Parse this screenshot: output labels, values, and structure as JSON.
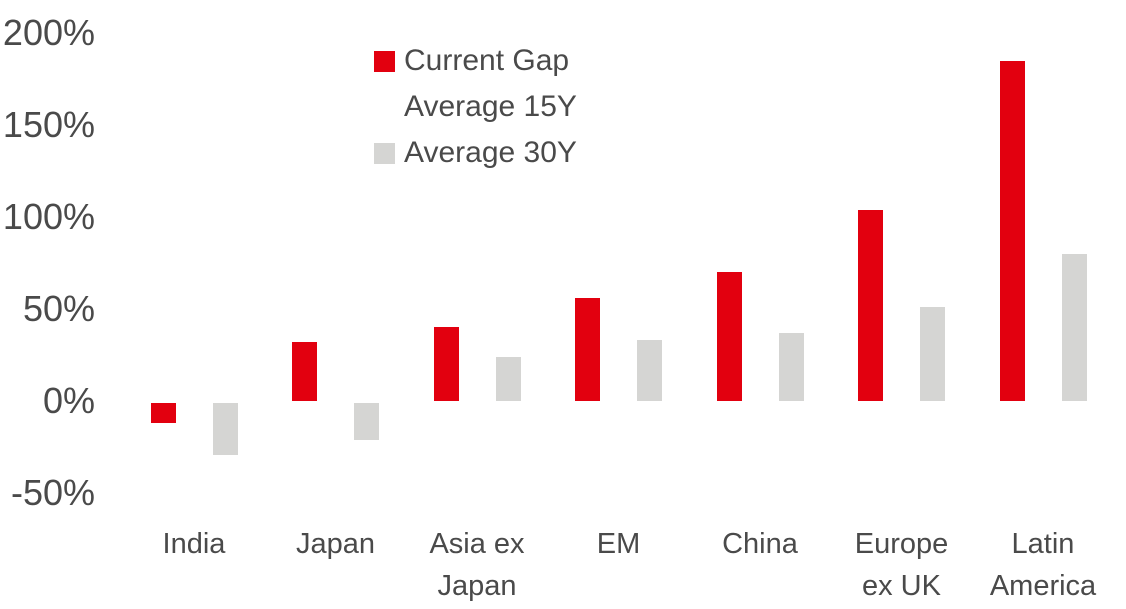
{
  "chart_data": {
    "type": "bar",
    "title": "",
    "categories": [
      "India",
      "Japan",
      "Asia ex Japan",
      "EM",
      "China",
      "Europe ex UK",
      "Latin America"
    ],
    "category_label_lines": [
      [
        "India"
      ],
      [
        "Japan"
      ],
      [
        "Asia ex",
        "Japan"
      ],
      [
        "EM"
      ],
      [
        "China"
      ],
      [
        "Europe",
        "ex UK"
      ],
      [
        "Latin",
        "America"
      ]
    ],
    "series": [
      {
        "name": "Current Gap Average 15Y",
        "key": "current-gap-average-15y",
        "color": "#e2000f",
        "values": [
          -11,
          32,
          40,
          56,
          70,
          104,
          185
        ]
      },
      {
        "name": "Average 30Y",
        "key": "average-30y",
        "color": "#d5d5d3",
        "values": [
          -28,
          -20,
          24,
          33,
          37,
          51,
          80
        ]
      }
    ],
    "unit": "%",
    "yticks": [
      {
        "value": 200,
        "label": "200%"
      },
      {
        "value": 150,
        "label": "150%"
      },
      {
        "value": 100,
        "label": "100%"
      },
      {
        "value": 50,
        "label": "50%"
      },
      {
        "value": 0,
        "label": "0%"
      },
      {
        "value": -50,
        "label": "-50%"
      }
    ],
    "ylim": [
      -50,
      200
    ],
    "grid": false,
    "axis_lines": false,
    "legend": {
      "position": "top-left-of-plot",
      "rows": [
        {
          "swatch": "#e2000f",
          "text": "Current Gap"
        },
        {
          "swatch": null,
          "text": "Average 15Y"
        },
        {
          "swatch": "#d5d5d3",
          "text": "Average 30Y"
        }
      ]
    },
    "colors": {
      "text": "#4a4a4a",
      "background": "#ffffff"
    }
  }
}
